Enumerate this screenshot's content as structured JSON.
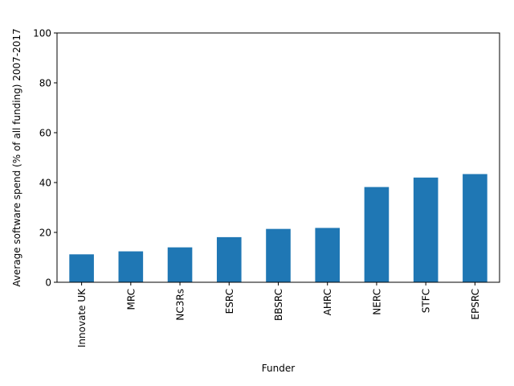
{
  "chart_data": {
    "type": "bar",
    "categories": [
      "Innovate UK",
      "MRC",
      "NC3Rs",
      "ESRC",
      "BBSRC",
      "AHRC",
      "NERC",
      "STFC",
      "EPSRC"
    ],
    "values": [
      11.2,
      12.4,
      14.0,
      18.1,
      21.4,
      21.8,
      38.2,
      42.0,
      43.4
    ],
    "xlabel": "Funder",
    "ylabel": "Average software spend (% of all funding) 2007-2017",
    "ylim": [
      0,
      100
    ],
    "yticks": [
      0,
      20,
      40,
      60,
      80,
      100
    ],
    "grid": false,
    "bar_color": "#1f77b4"
  }
}
